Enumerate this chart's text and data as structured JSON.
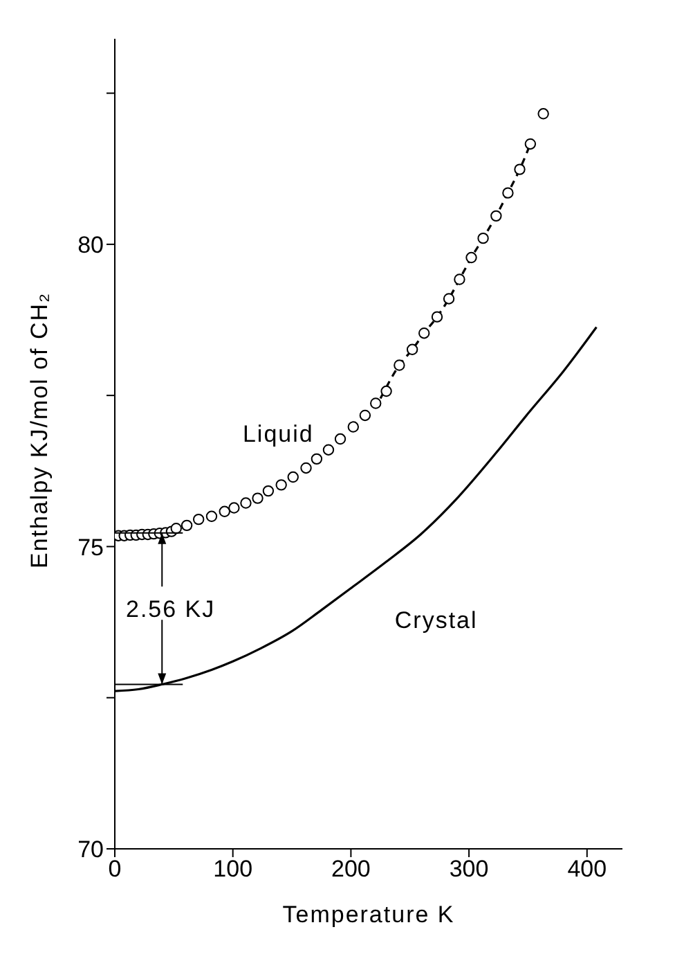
{
  "chart_data": {
    "type": "line",
    "xlabel": "Temperature   K",
    "ylabel": "Enthalpy   KJ/mol of CH₂",
    "xlim": [
      0,
      430
    ],
    "xticks": [
      0,
      100,
      200,
      300,
      400
    ],
    "ylim": [
      70,
      83.4
    ],
    "yticks": [
      70,
      {
        "value": 72.5,
        "label": null
      },
      75,
      {
        "value": 77.5,
        "label": null
      },
      80,
      {
        "value": 82.5,
        "label": null
      }
    ],
    "grid": false,
    "series": [
      {
        "name": "Crystal",
        "color": "#000000",
        "marker": "none",
        "line_style": "solid",
        "x": [
          0,
          20,
          40,
          60,
          82,
          100,
          124,
          150,
          175,
          202,
          230,
          259,
          290,
          323,
          350,
          380,
          408
        ],
        "values": [
          72.61,
          72.64,
          72.72,
          72.82,
          72.96,
          73.1,
          73.32,
          73.6,
          73.95,
          74.34,
          74.75,
          75.2,
          75.8,
          76.55,
          77.2,
          77.9,
          78.63
        ]
      },
      {
        "name": "Liquid",
        "type": "scatter",
        "color": "#000000",
        "marker": "circle",
        "x": [
          3,
          8,
          13,
          18,
          23,
          28,
          33,
          38,
          43,
          48,
          52,
          61,
          71,
          82,
          93,
          101,
          111,
          121,
          130,
          141,
          151,
          162,
          171,
          181,
          191,
          202,
          212,
          221,
          230,
          241,
          252,
          262,
          273,
          283,
          292,
          302,
          312,
          323,
          333,
          343,
          352,
          363
        ],
        "values": [
          75.18,
          75.18,
          75.19,
          75.19,
          75.2,
          75.2,
          75.21,
          75.22,
          75.23,
          75.25,
          75.3,
          75.35,
          75.45,
          75.5,
          75.58,
          75.64,
          75.72,
          75.8,
          75.92,
          76.02,
          76.15,
          76.3,
          76.45,
          76.6,
          76.78,
          76.98,
          77.17,
          77.37,
          77.57,
          78.0,
          78.26,
          78.53,
          78.8,
          79.1,
          79.42,
          79.78,
          80.1,
          80.47,
          80.85,
          81.24,
          81.66,
          82.16
        ]
      },
      {
        "type": "line",
        "color": "#000000",
        "marker": "none",
        "line_style": "dashed",
        "x": [
          225,
          241,
          252,
          262,
          273,
          283,
          292,
          302,
          312,
          323,
          333,
          343,
          352
        ],
        "values": [
          77.45,
          78.0,
          78.26,
          78.53,
          78.8,
          79.1,
          79.42,
          79.78,
          80.1,
          80.47,
          80.85,
          81.24,
          81.66
        ]
      }
    ],
    "annotations": [
      {
        "text": "2.56 KJ",
        "x": 40,
        "y": 72.72
      }
    ]
  }
}
